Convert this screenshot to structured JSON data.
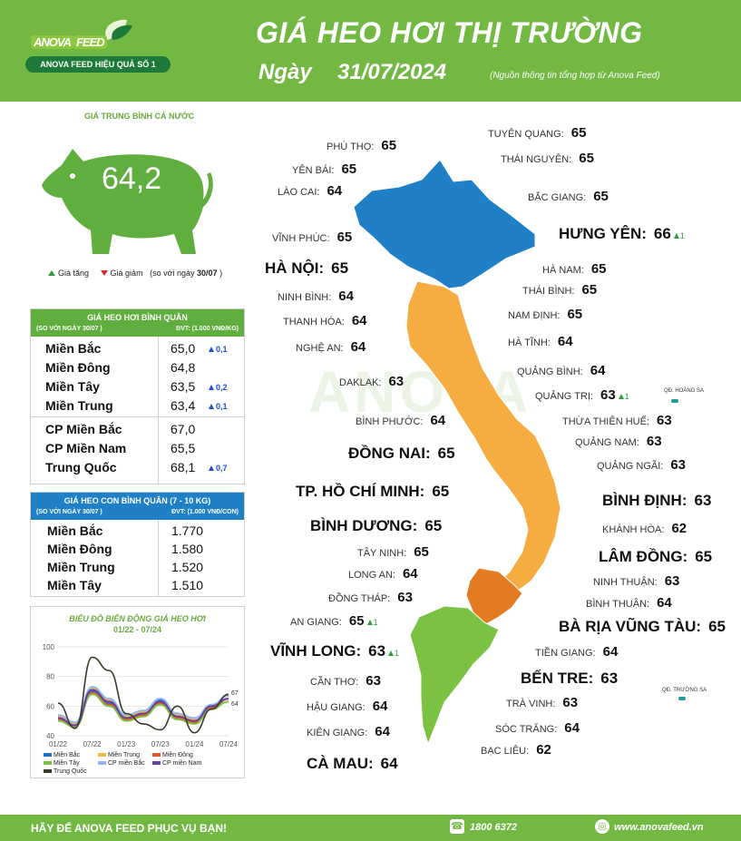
{
  "header": {
    "logo_word": "ANOVA",
    "logo_word_suffix": "FEED",
    "logo_slogan": "ANOVA FEED HIỆU QUẢ SỐ 1",
    "title": "GIÁ HEO HƠI THỊ TRƯỜNG",
    "date_label": "Ngày",
    "date": "31/07/2024",
    "source_note": "(Nguồn thông tin tổng hợp từ Anova Feed)"
  },
  "national": {
    "label": "GIÁ TRUNG BÌNH CẢ NƯỚC",
    "value": "64,2",
    "legend_up": "Giá tăng",
    "legend_down": "Giá giảm",
    "legend_compare": "(so với ngày",
    "legend_compare_date": "30/07",
    "legend_close": ")"
  },
  "colors": {
    "green": "#72b843",
    "blue": "#1f80c8",
    "orange": "#f5ad42",
    "dark_orange": "#e37b22",
    "table_head_green": "#5fae3e",
    "table_head_blue": "#1f80c8"
  },
  "price_table": {
    "title": "GIÁ HEO HƠI BÌNH QUÂN",
    "sub_left": "(SO VỚI NGÀY 30/07 )",
    "sub_right": "ĐVT: (1.000 VNĐ/KG)",
    "regions": [
      {
        "name": "Miền Bắc",
        "value": "65,0",
        "change": "0,1"
      },
      {
        "name": "Miền Đông",
        "value": "64,8",
        "change": ""
      },
      {
        "name": "Miền Tây",
        "value": "63,5",
        "change": "0,2"
      },
      {
        "name": "Miền Trung",
        "value": "63,4",
        "change": "0,1"
      }
    ],
    "others": [
      {
        "name": "CP Miền Bắc",
        "value": "67,0",
        "change": ""
      },
      {
        "name": "CP Miền Nam",
        "value": "65,5",
        "change": ""
      },
      {
        "name": "Trung Quốc",
        "value": "68,1",
        "change": "0,7"
      }
    ]
  },
  "piglet_table": {
    "title": "GIÁ HEO CON BÌNH QUÂN (7 - 10 KG)",
    "sub_left": "(SO VỚI NGÀY 30/07 )",
    "sub_right": "ĐVT: (1.000 VNĐ/CON)",
    "rows": [
      {
        "name": "Miền Bắc",
        "value": "1.770"
      },
      {
        "name": "Miền Đông",
        "value": "1.580"
      },
      {
        "name": "Miền Trung",
        "value": "1.520"
      },
      {
        "name": "Miền Tây",
        "value": "1.510"
      }
    ]
  },
  "chart_data": {
    "type": "line",
    "title": "BIỂU ĐỒ BIẾN ĐỘNG GIÁ HEO HƠI",
    "subtitle": "01/22 - 07/24",
    "x_ticks": [
      "01/22",
      "07/22",
      "01/23",
      "07/23",
      "01/24",
      "07/24"
    ],
    "y_ticks": [
      40,
      60,
      80,
      100
    ],
    "ylim": [
      40,
      100
    ],
    "x": [
      "01/22",
      "04/22",
      "07/22",
      "10/22",
      "01/23",
      "04/23",
      "07/23",
      "10/23",
      "01/24",
      "04/24",
      "07/24"
    ],
    "end_labels": [
      "67",
      "64"
    ],
    "series": [
      {
        "name": "Miền Bắc",
        "color": "#1f6fd1",
        "values": [
          52,
          47,
          70,
          62,
          52,
          55,
          64,
          53,
          50,
          60,
          65
        ]
      },
      {
        "name": "Miền Trung",
        "color": "#f2b84b",
        "values": [
          53,
          48,
          72,
          64,
          53,
          56,
          63,
          54,
          51,
          59,
          63
        ]
      },
      {
        "name": "Miền Đông",
        "color": "#e0572b",
        "values": [
          51,
          47,
          69,
          61,
          51,
          54,
          62,
          52,
          49,
          59,
          65
        ]
      },
      {
        "name": "Miền Tây",
        "color": "#7cc242",
        "values": [
          50,
          46,
          68,
          60,
          50,
          53,
          61,
          51,
          48,
          58,
          63
        ]
      },
      {
        "name": "CP miền Bắc",
        "color": "#8fb8e8",
        "values": [
          54,
          49,
          73,
          65,
          54,
          57,
          65,
          55,
          52,
          61,
          67
        ]
      },
      {
        "name": "CP miền Nam",
        "color": "#6b3fa0",
        "values": [
          52,
          47,
          71,
          63,
          52,
          55,
          63,
          53,
          50,
          60,
          65
        ]
      },
      {
        "name": "Trung Quốc",
        "color": "#3b3b2a",
        "values": [
          62,
          45,
          93,
          84,
          55,
          48,
          44,
          60,
          42,
          58,
          68
        ]
      }
    ]
  },
  "map": {
    "small": [
      {
        "name": "PHÚ THỌ:",
        "value": "65"
      },
      {
        "name": "YÊN BÁI:",
        "value": "65"
      },
      {
        "name": "LÀO CAI:",
        "value": "64"
      },
      {
        "name": "VĨNH PHÚC:",
        "value": "65"
      },
      {
        "name": "NINH BÌNH:",
        "value": "64"
      },
      {
        "name": "THANH HÓA:",
        "value": "64"
      },
      {
        "name": "NGHỆ AN:",
        "value": "64"
      },
      {
        "name": "DAKLAK:",
        "value": "63"
      },
      {
        "name": "BÌNH PHƯỚC:",
        "value": "64"
      },
      {
        "name": "TÂY NINH:",
        "value": "65"
      },
      {
        "name": "LONG AN:",
        "value": "64"
      },
      {
        "name": "ĐỒNG THÁP:",
        "value": "63"
      },
      {
        "name": "AN GIANG:",
        "value": "65",
        "change": "1"
      },
      {
        "name": "CẦN THƠ:",
        "value": "63"
      },
      {
        "name": "HẬU GIANG:",
        "value": "64"
      },
      {
        "name": "KIÊN GIANG:",
        "value": "64"
      },
      {
        "name": "TUYÊN QUANG:",
        "value": "65"
      },
      {
        "name": "THÁI NGUYÊN:",
        "value": "65"
      },
      {
        "name": "BẮC GIANG:",
        "value": "65"
      },
      {
        "name": "HÀ NAM:",
        "value": "65"
      },
      {
        "name": "THÁI BÌNH:",
        "value": "65"
      },
      {
        "name": "NAM ĐỊNH:",
        "value": "65"
      },
      {
        "name": "HÀ TĨNH:",
        "value": "64"
      },
      {
        "name": "QUẢNG BÌNH:",
        "value": "64"
      },
      {
        "name": "QUẢNG TRỊ:",
        "value": "63",
        "change": "1"
      },
      {
        "name": "THỪA THIÊN HUẾ:",
        "value": "63"
      },
      {
        "name": "QUẢNG NAM:",
        "value": "63"
      },
      {
        "name": "QUẢNG NGÃI:",
        "value": "63"
      },
      {
        "name": "KHÁNH HÒA:",
        "value": "62"
      },
      {
        "name": "NINH THUẬN:",
        "value": "63"
      },
      {
        "name": "BÌNH THUẬN:",
        "value": "64"
      },
      {
        "name": "TIỀN GIANG:",
        "value": "64"
      },
      {
        "name": "TRÀ VINH:",
        "value": "63"
      },
      {
        "name": "SÓC TRĂNG:",
        "value": "64"
      },
      {
        "name": "BẠC LIÊU:",
        "value": "62"
      }
    ],
    "big": [
      {
        "name": "HÀ NỘI:",
        "value": "65"
      },
      {
        "name": "ĐỒNG NAI:",
        "value": "65"
      },
      {
        "name": "TP. HỒ CHÍ MINH:",
        "value": "65"
      },
      {
        "name": "BÌNH DƯƠNG:",
        "value": "65"
      },
      {
        "name": "VĨNH LONG:",
        "value": "63",
        "change": "1"
      },
      {
        "name": "CÀ MAU:",
        "value": "64"
      },
      {
        "name": "HƯNG YÊN:",
        "value": "66",
        "change": "1"
      },
      {
        "name": "BÌNH ĐỊNH:",
        "value": "63"
      },
      {
        "name": "LÂM ĐỒNG:",
        "value": "65"
      },
      {
        "name": "BÀ RỊA VŨNG TÀU:",
        "value": "65"
      },
      {
        "name": "BẾN TRE:",
        "value": "63"
      }
    ],
    "island_hoang_sa": "QĐ. HOÀNG SA",
    "island_truong_sa": "QĐ. TRƯỜNG SA"
  },
  "watermark": "ANOVA",
  "footer": {
    "slogan": "HÃY ĐỂ ANOVA FEED PHỤC VỤ BẠN!",
    "phone": "1800 6372",
    "website": "www.anovafeed.vn"
  }
}
